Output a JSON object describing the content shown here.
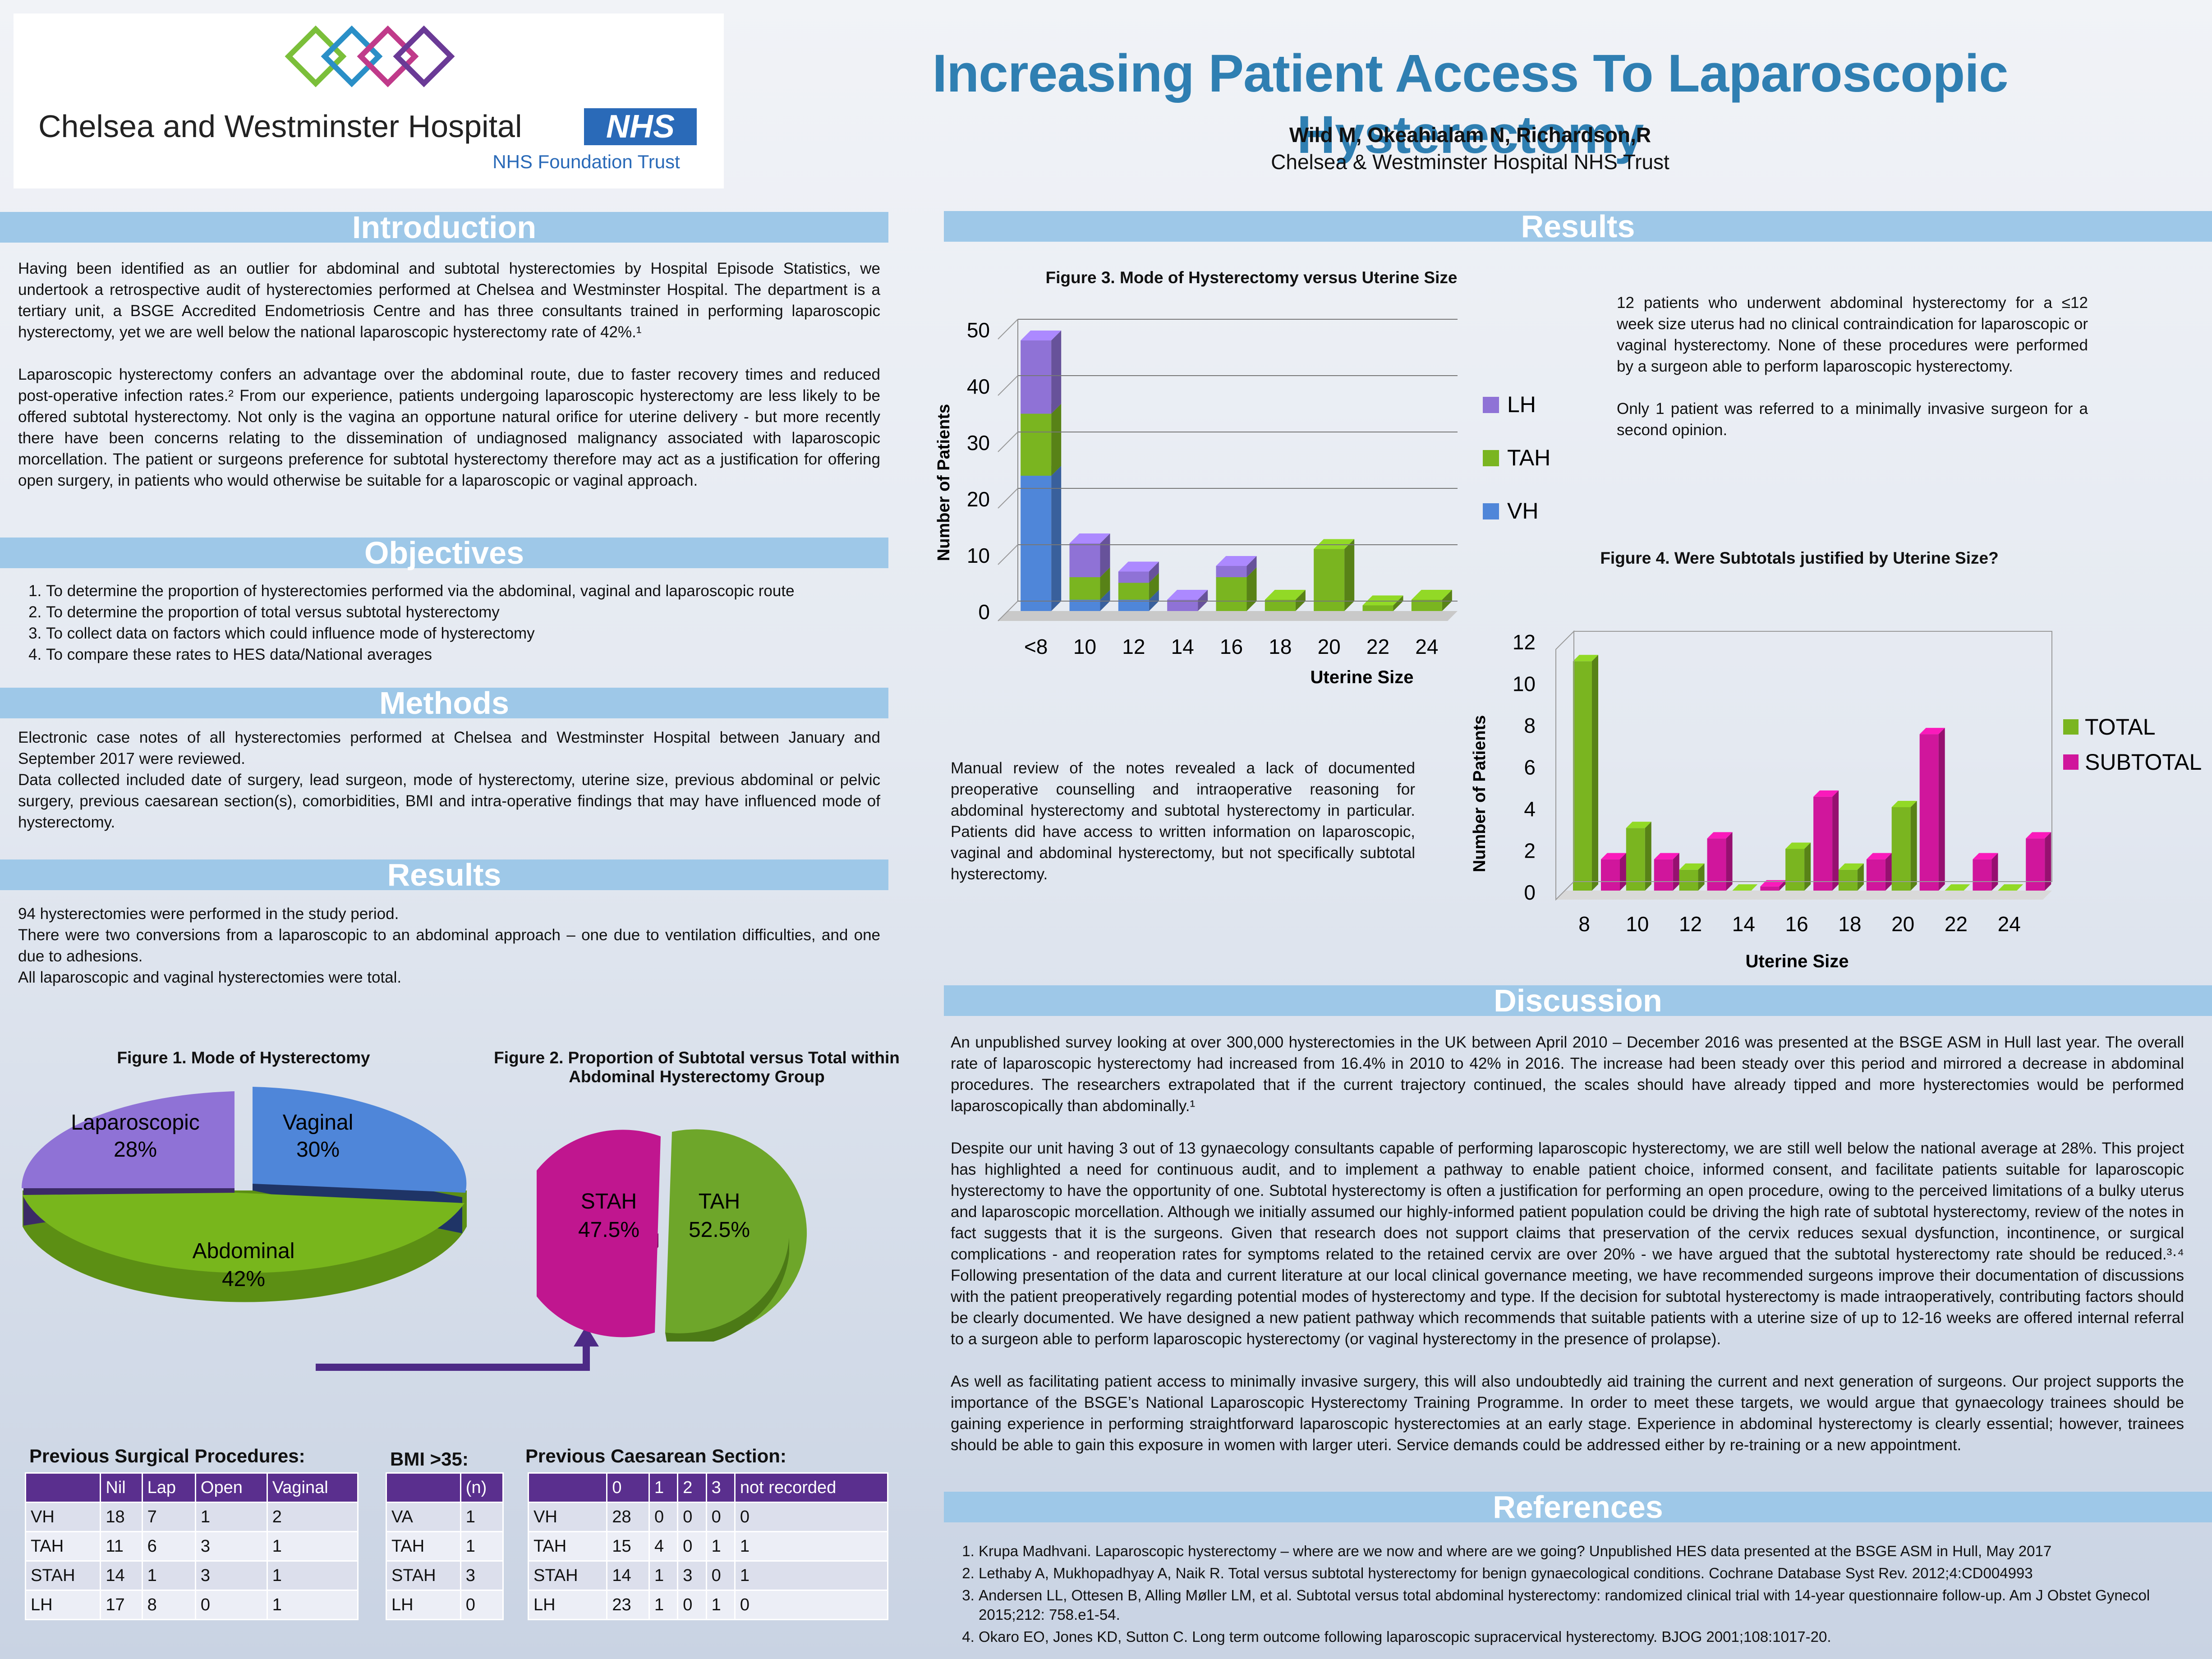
{
  "logo": {
    "hospital": "Chelsea and Westminster Hospital",
    "nhs": "NHS",
    "trust": "NHS Foundation Trust"
  },
  "header": {
    "title": "Increasing Patient Access To Laparoscopic Hysterectomy",
    "authors": "Wild M, Okeahialam N, Richardson,R",
    "affiliation": "Chelsea & Westminster Hospital NHS Trust"
  },
  "introduction": {
    "heading": "Introduction",
    "p1": "Having been identified as an outlier for abdominal and subtotal hysterectomies by Hospital Episode Statistics, we undertook a retrospective audit of hysterectomies performed at Chelsea and Westminster Hospital. The department is a tertiary unit, a BSGE Accredited Endometriosis Centre and has three consultants trained in performing laparoscopic hysterectomy, yet we are well below the national laparoscopic hysterectomy rate of 42%.¹",
    "p2": "Laparoscopic hysterectomy confers an advantage over the abdominal route, due to faster recovery times and reduced post-operative infection rates.² From our experience, patients undergoing laparoscopic hysterectomy are less likely to be offered subtotal hysterectomy. Not only is the vagina an opportune natural orifice for uterine delivery - but more recently there have been concerns relating to the dissemination of undiagnosed malignancy associated with laparoscopic morcellation. The patient or surgeons preference for subtotal hysterectomy therefore may act as a justification for offering open surgery, in patients who would otherwise be suitable for a laparoscopic or vaginal approach."
  },
  "objectives": {
    "heading": "Objectives",
    "items": [
      "To determine the proportion of hysterectomies performed via the abdominal, vaginal and laparoscopic route",
      "To determine the proportion of total versus subtotal hysterectomy",
      "To collect data on factors which could influence mode of hysterectomy",
      "To compare these rates to HES data/National averages"
    ]
  },
  "methods": {
    "heading": "Methods",
    "p1": "Electronic case notes of all hysterectomies performed at Chelsea and Westminster Hospital between January and September 2017 were reviewed.",
    "p2": "Data collected included date of surgery, lead surgeon, mode of hysterectomy, uterine size, previous abdominal or pelvic surgery, previous caesarean section(s), comorbidities, BMI and intra-operative findings that may have influenced mode of hysterectomy."
  },
  "results_left": {
    "heading": "Results",
    "l1": "94 hysterectomies were performed in the study period.",
    "l2": "There were two conversions from a laparoscopic to an abdominal approach – one due to ventilation difficulties, and one due to adhesions.",
    "l3": "All laparoscopic and vaginal hysterectomies were total."
  },
  "fig1": {
    "title": "Figure 1. Mode of Hysterectomy",
    "labels": [
      "Laparoscopic",
      "Vaginal",
      "Abdominal"
    ],
    "pcts": [
      "28%",
      "30%",
      "42%"
    ]
  },
  "fig2": {
    "title_line1": "Figure 2. Proportion of Subtotal versus Total within",
    "title_line2": "Abdominal Hysterectomy Group",
    "labels": [
      "STAH",
      "TAH"
    ],
    "pcts": [
      "47.5%",
      "52.5%"
    ]
  },
  "tables": {
    "prev_caption": "Previous Surgical Procedures:",
    "prev_head": [
      "",
      "Nil",
      "Lap",
      "Open",
      "Vaginal"
    ],
    "prev_rows": [
      [
        "VH",
        "18",
        "7",
        "1",
        "2"
      ],
      [
        "TAH",
        "11",
        "6",
        "3",
        "1"
      ],
      [
        "STAH",
        "14",
        "1",
        "3",
        "1"
      ],
      [
        "LH",
        "17",
        "8",
        "0",
        "1"
      ]
    ],
    "bmi_caption": "BMI >35:",
    "bmi_head": [
      "",
      "(n)"
    ],
    "bmi_rows": [
      [
        "VA",
        "1"
      ],
      [
        "TAH",
        "1"
      ],
      [
        "STAH",
        "3"
      ],
      [
        "LH",
        "0"
      ]
    ],
    "cs_caption": "Previous Caesarean Section:",
    "cs_head": [
      "",
      "0",
      "1",
      "2",
      "3",
      "not recorded"
    ],
    "cs_rows": [
      [
        "VH",
        "28",
        "0",
        "0",
        "0",
        "0"
      ],
      [
        "TAH",
        "15",
        "4",
        "0",
        "1",
        "1"
      ],
      [
        "STAH",
        "14",
        "1",
        "3",
        "0",
        "1"
      ],
      [
        "LH",
        "23",
        "1",
        "0",
        "1",
        "0"
      ]
    ]
  },
  "results_right": {
    "heading": "Results",
    "p1": "12 patients who underwent abdominal hysterectomy for a ≤12 week size uterus had no clinical contraindication for laparoscopic or vaginal hysterectomy. None of these procedures were performed by a surgeon able to perform laparoscopic hysterectomy.",
    "p2": "Only 1 patient was referred to a minimally invasive surgeon for a second opinion.",
    "p3": "Manual review of the notes revealed a lack of documented preoperative counselling and intraoperative reasoning for abdominal hysterectomy and subtotal hysterectomy in particular. Patients did have access to written information on laparoscopic, vaginal and abdominal hysterectomy, but not specifically subtotal hysterectomy."
  },
  "chart_data": [
    {
      "type": "bar",
      "stacked": true,
      "title": "Figure  3. Mode of Hysterectomy versus Uterine Size",
      "xlabel": "Uterine Size",
      "ylabel": "Number of Patients",
      "categories": [
        "<8",
        "10",
        "12",
        "14",
        "16",
        "18",
        "20",
        "22",
        "24"
      ],
      "series": [
        {
          "name": "VH",
          "values": [
            24,
            2,
            2,
            0,
            0,
            0,
            0,
            0,
            0
          ]
        },
        {
          "name": "TAH",
          "values": [
            11,
            4,
            3,
            0,
            6,
            2,
            11,
            1,
            2
          ]
        },
        {
          "name": "LH",
          "values": [
            13,
            6,
            2,
            2,
            2,
            0,
            0,
            0,
            0
          ]
        }
      ],
      "yticks": [
        0,
        10,
        20,
        30,
        40,
        50
      ],
      "ylim": [
        0,
        50
      ],
      "legend": "right",
      "colors": {
        "VH": "#4f86d9",
        "TAH": "#7ab520",
        "LH": "#8f72d6"
      }
    },
    {
      "type": "bar",
      "title": "Figure 4. Were Subtotals justified by Uterine Size?",
      "xlabel": "Uterine Size",
      "ylabel": "Number of Patients",
      "categories": [
        "8",
        "10",
        "12",
        "14",
        "16",
        "18",
        "20",
        "22",
        "24"
      ],
      "series": [
        {
          "name": "TOTAL",
          "values": [
            11,
            3,
            1,
            0,
            2,
            1,
            4,
            0,
            0
          ]
        },
        {
          "name": "SUBTOTAL",
          "values": [
            1.5,
            1.5,
            2.5,
            0.2,
            4.5,
            1.5,
            7.5,
            1.5,
            2.5
          ]
        }
      ],
      "yticks": [
        0,
        2,
        4,
        6,
        8,
        10,
        12
      ],
      "ylim": [
        0,
        12
      ],
      "legend": "right",
      "colors": {
        "TOTAL": "#7ab520",
        "SUBTOTAL": "#d0169c"
      }
    }
  ],
  "discussion": {
    "heading": "Discussion",
    "p1": "An unpublished survey looking at over 300,000 hysterectomies in the UK between April 2010 – December 2016 was presented at the BSGE ASM in Hull last year. The overall rate of laparoscopic hysterectomy had increased from 16.4% in 2010 to 42% in 2016. The increase had been steady over this period and mirrored a decrease in abdominal procedures. The researchers extrapolated that if the current trajectory continued, the scales should have already tipped and more hysterectomies would be performed laparoscopically than abdominally.¹",
    "p2": "Despite our unit having 3 out of 13 gynaecology consultants capable of performing laparoscopic hysterectomy, we are still well below the national average at 28%. This project has highlighted a need for continuous audit, and to implement a pathway to enable patient choice, informed consent, and facilitate patients suitable for laparoscopic hysterectomy to have the opportunity of one. Subtotal hysterectomy is often a justification for performing an open procedure, owing to the perceived limitations of a bulky uterus and laparoscopic morcellation. Although we initially assumed our highly-informed patient population could be driving the high rate of subtotal hysterectomy, review of the notes in fact suggests that it is the surgeons. Given that research does not support claims that preservation of the cervix reduces sexual dysfunction, incontinence, or surgical complications - and reoperation rates for symptoms related to the retained cervix are over 20% - we have argued that the subtotal hysterectomy rate should be reduced.³·⁴ Following presentation of the data and current literature at our local clinical governance meeting, we have recommended surgeons improve their documentation of discussions with the patient preoperatively regarding potential modes of hysterectomy and type. If the decision for subtotal hysterectomy is made intraoperatively, contributing factors should be clearly documented. We have designed a new patient pathway which recommends that suitable patients with a uterine size of up to 12-16 weeks are offered internal referral to a surgeon able to perform laparoscopic hysterectomy (or vaginal hysterectomy in the presence of prolapse).",
    "p3": "As well as facilitating patient access to minimally invasive surgery, this will also undoubtedly aid training the current and next generation of surgeons. Our project supports the importance of the BSGE’s National Laparoscopic Hysterectomy Training Programme. In order to meet these targets, we would argue that gynaecology trainees should be gaining experience in performing straightforward laparoscopic hysterectomies at an early stage. Experience in abdominal hysterectomy is clearly essential; however, trainees should be able to gain this exposure in women with larger uteri.  Service demands could be addressed either by re-training or a new appointment."
  },
  "references": {
    "heading": "References",
    "items": [
      "Krupa Madhvani. Laparoscopic hysterectomy – where are we now and where are we going? Unpublished HES data presented at the BSGE ASM in Hull, May 2017",
      "Lethaby A, Mukhopadhyay A, Naik R. Total versus subtotal hysterectomy for benign gynaecological conditions. Cochrane Database Syst Rev. 2012;4:CD004993",
      "Andersen LL, Ottesen B, Alling Møller LM, et al. Subtotal versus total abdominal hysterectomy: randomized clinical trial with 14-year questionnaire follow-up. Am J Obstet Gynecol 2015;212: 758.e1-54.",
      "Okaro EO, Jones KD, Sutton C. Long term outcome following laparoscopic supracervical hysterectomy. BJOG 2001;108:1017-20."
    ]
  }
}
